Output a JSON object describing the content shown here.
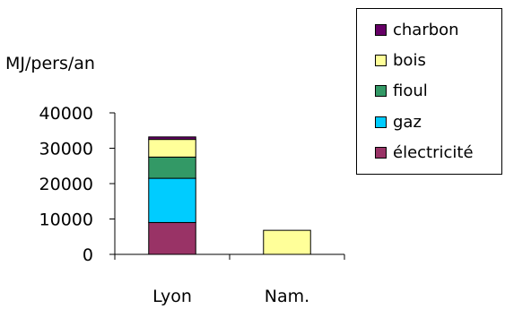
{
  "chart_data": {
    "type": "bar",
    "stacked": true,
    "ylabel": "MJ/pers/an",
    "xlabel": "",
    "ylim": [
      0,
      40000
    ],
    "yticks": [
      0,
      10000,
      20000,
      30000,
      40000
    ],
    "categories": [
      "Lyon",
      "Nam."
    ],
    "series": [
      {
        "name": "électricité",
        "color": "#993366",
        "values": [
          9000,
          0
        ]
      },
      {
        "name": "gaz",
        "color": "#00CCFF",
        "values": [
          12500,
          0
        ]
      },
      {
        "name": "fioul",
        "color": "#339966",
        "values": [
          6000,
          0
        ]
      },
      {
        "name": "bois",
        "color": "#FFFF99",
        "values": [
          5000,
          6800
        ]
      },
      {
        "name": "charbon",
        "color": "#660066",
        "values": [
          700,
          0
        ]
      }
    ],
    "legend": {
      "position": "top-right",
      "order": [
        "charbon",
        "bois",
        "fioul",
        "gaz",
        "électricité"
      ]
    },
    "grid": false
  }
}
